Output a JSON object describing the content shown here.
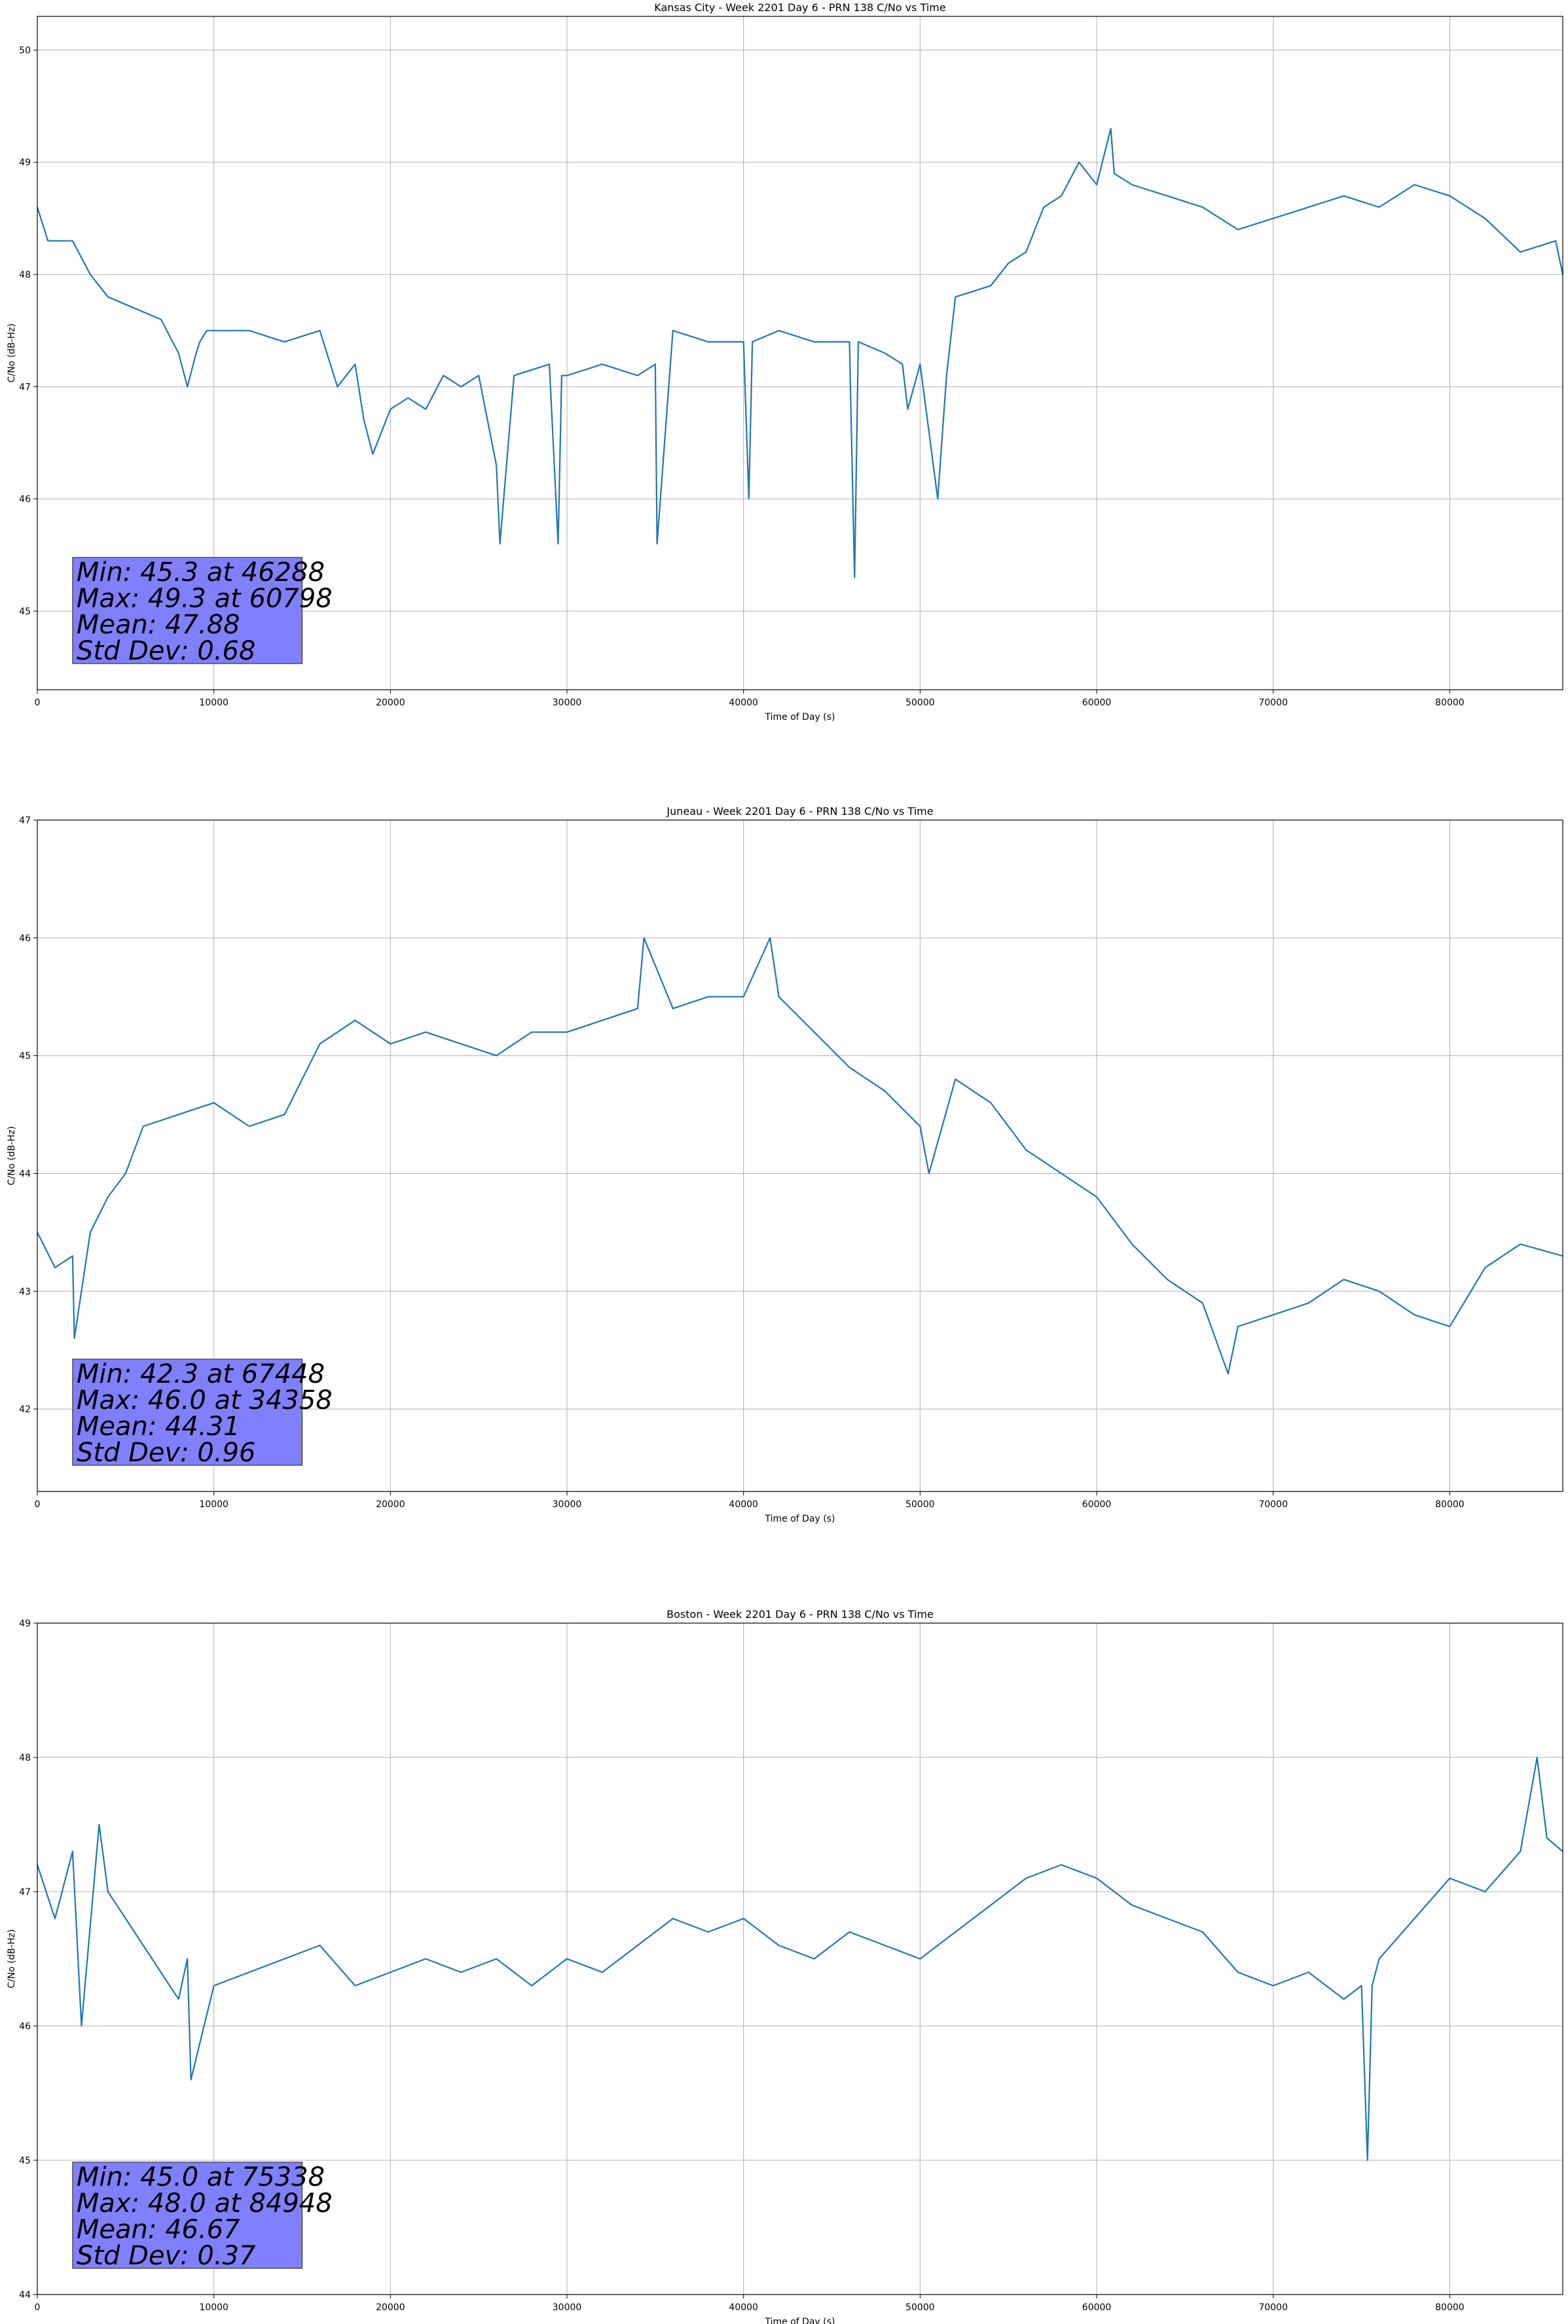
{
  "chart_data": [
    {
      "type": "line",
      "title": "Kansas City - Week 2201 Day 6 - PRN 138 C/No vs Time",
      "xlabel": "Time of Day (s)",
      "ylabel": "C/No (dB-Hz)",
      "xlim": [
        0,
        86400
      ],
      "ylim": [
        44.3,
        50.3
      ],
      "xticks": [
        0,
        10000,
        20000,
        30000,
        40000,
        50000,
        60000,
        70000,
        80000
      ],
      "yticks": [
        45,
        46,
        47,
        48,
        49,
        50
      ],
      "grid": true,
      "series": [
        {
          "color": "#1f77b4",
          "x": [
            0,
            600,
            2000,
            3000,
            4000,
            7000,
            8000,
            8500,
            9000,
            9200,
            9600,
            12000,
            14000,
            16000,
            17000,
            18000,
            18500,
            19000,
            20000,
            21000,
            22000,
            23000,
            24000,
            25000,
            26000,
            26200,
            27000,
            29000,
            29500,
            29700,
            30000,
            32000,
            34000,
            35000,
            35100,
            36000,
            38000,
            40000,
            40300,
            40500,
            42000,
            44000,
            46000,
            46288,
            46500,
            48000,
            49000,
            49300,
            50000,
            51000,
            51500,
            52000,
            54000,
            55000,
            56000,
            57000,
            58000,
            59000,
            60000,
            60798,
            61000,
            62000,
            64000,
            66000,
            68000,
            70000,
            72000,
            74000,
            76000,
            78000,
            80000,
            82000,
            84000,
            86000,
            86400
          ],
          "y": [
            48.6,
            48.3,
            48.3,
            48.0,
            47.8,
            47.6,
            47.3,
            47.0,
            47.3,
            47.4,
            47.5,
            47.5,
            47.4,
            47.5,
            47.0,
            47.2,
            46.7,
            46.4,
            46.8,
            46.9,
            46.8,
            47.1,
            47.0,
            47.1,
            46.3,
            45.6,
            47.1,
            47.2,
            45.6,
            47.1,
            47.1,
            47.2,
            47.1,
            47.2,
            45.6,
            47.5,
            47.4,
            47.4,
            46.0,
            47.4,
            47.5,
            47.4,
            47.4,
            45.3,
            47.4,
            47.3,
            47.2,
            46.8,
            47.2,
            46.0,
            47.1,
            47.8,
            47.9,
            48.1,
            48.2,
            48.6,
            48.7,
            49.0,
            48.8,
            49.3,
            48.9,
            48.8,
            48.7,
            48.6,
            48.4,
            48.5,
            48.6,
            48.7,
            48.6,
            48.8,
            48.7,
            48.5,
            48.2,
            48.3,
            48.0
          ]
        }
      ],
      "stats": [
        "Min: 45.3 at 46288",
        "Max: 49.3 at 60798",
        "Mean: 47.88",
        "Std Dev: 0.68"
      ]
    },
    {
      "type": "line",
      "title": "Juneau - Week 2201 Day 6 - PRN 138 C/No vs Time",
      "xlabel": "Time of Day (s)",
      "ylabel": "C/No (dB-Hz)",
      "xlim": [
        0,
        86400
      ],
      "ylim": [
        41.3,
        47.0
      ],
      "xticks": [
        0,
        10000,
        20000,
        30000,
        40000,
        50000,
        60000,
        70000,
        80000
      ],
      "yticks": [
        42,
        43,
        44,
        45,
        46,
        47
      ],
      "grid": true,
      "series": [
        {
          "color": "#1f77b4",
          "x": [
            0,
            1000,
            2000,
            2100,
            3000,
            4000,
            5000,
            6000,
            8000,
            10000,
            12000,
            14000,
            16000,
            18000,
            20000,
            22000,
            24000,
            26000,
            28000,
            30000,
            32000,
            34000,
            34358,
            36000,
            38000,
            40000,
            41500,
            42000,
            44000,
            46000,
            48000,
            50000,
            50500,
            52000,
            54000,
            56000,
            58000,
            60000,
            62000,
            64000,
            66000,
            67448,
            68000,
            70000,
            72000,
            74000,
            76000,
            78000,
            80000,
            82000,
            84000,
            86400
          ],
          "y": [
            43.5,
            43.2,
            43.3,
            42.6,
            43.5,
            43.8,
            44.0,
            44.4,
            44.5,
            44.6,
            44.4,
            44.5,
            45.1,
            45.3,
            45.1,
            45.2,
            45.1,
            45.0,
            45.2,
            45.2,
            45.3,
            45.4,
            46.0,
            45.4,
            45.5,
            45.5,
            46.0,
            45.5,
            45.2,
            44.9,
            44.7,
            44.4,
            44.0,
            44.8,
            44.6,
            44.2,
            44.0,
            43.8,
            43.4,
            43.1,
            42.9,
            42.3,
            42.7,
            42.8,
            42.9,
            43.1,
            43.0,
            42.8,
            42.7,
            43.2,
            43.4,
            43.3
          ]
        }
      ],
      "stats": [
        "Min: 42.3 at 67448",
        "Max: 46.0 at 34358",
        "Mean: 44.31",
        "Std Dev: 0.96"
      ]
    },
    {
      "type": "line",
      "title": "Boston - Week 2201 Day 6 - PRN 138 C/No vs Time",
      "xlabel": "Time of Day (s)",
      "ylabel": "C/No (dB-Hz)",
      "xlim": [
        0,
        86400
      ],
      "ylim": [
        44.0,
        49.0
      ],
      "xticks": [
        0,
        10000,
        20000,
        30000,
        40000,
        50000,
        60000,
        70000,
        80000
      ],
      "yticks": [
        44,
        45,
        46,
        47,
        48,
        49
      ],
      "grid": true,
      "series": [
        {
          "color": "#1f77b4",
          "x": [
            0,
            1000,
            2000,
            2500,
            3500,
            4000,
            6000,
            8000,
            8500,
            8700,
            10000,
            12000,
            14000,
            16000,
            18000,
            20000,
            22000,
            24000,
            26000,
            28000,
            30000,
            32000,
            34000,
            36000,
            38000,
            40000,
            42000,
            44000,
            46000,
            48000,
            50000,
            52000,
            54000,
            56000,
            58000,
            60000,
            62000,
            64000,
            66000,
            68000,
            70000,
            72000,
            74000,
            75000,
            75338,
            75600,
            76000,
            78000,
            80000,
            82000,
            84000,
            84948,
            85500,
            86400
          ],
          "y": [
            47.2,
            46.8,
            47.3,
            46.0,
            47.5,
            47.0,
            46.6,
            46.2,
            46.5,
            45.6,
            46.3,
            46.4,
            46.5,
            46.6,
            46.3,
            46.4,
            46.5,
            46.4,
            46.5,
            46.3,
            46.5,
            46.4,
            46.6,
            46.8,
            46.7,
            46.8,
            46.6,
            46.5,
            46.7,
            46.6,
            46.5,
            46.7,
            46.9,
            47.1,
            47.2,
            47.1,
            46.9,
            46.8,
            46.7,
            46.4,
            46.3,
            46.4,
            46.2,
            46.3,
            45.0,
            46.3,
            46.5,
            46.8,
            47.1,
            47.0,
            47.3,
            48.0,
            47.4,
            47.3
          ]
        }
      ],
      "stats": [
        "Min: 45.0 at 75338",
        "Max: 48.0 at 84948",
        "Mean: 46.67",
        "Std Dev: 0.37"
      ]
    }
  ]
}
